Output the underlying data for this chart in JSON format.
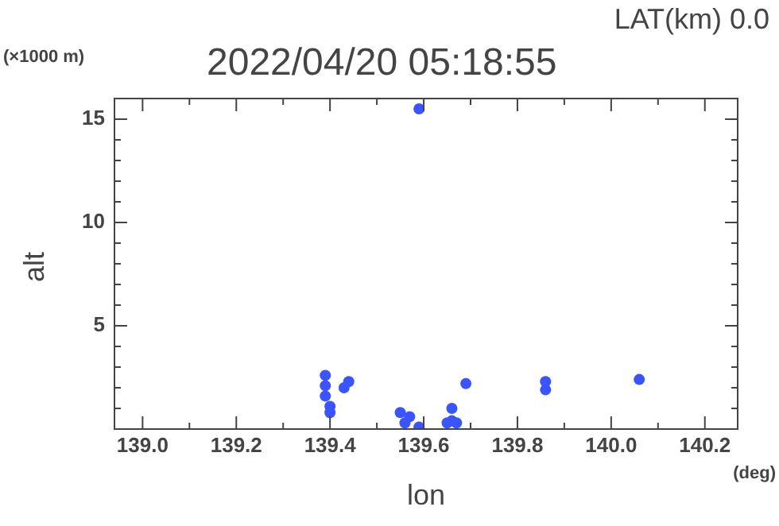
{
  "chart_data": {
    "type": "scatter",
    "title": "2022/04/20 05:18:55",
    "xlabel": "lon",
    "ylabel": "alt",
    "annotations": [
      "LAT(km) 0.0",
      "(×1000 m)",
      "(deg)"
    ],
    "marker": "circle",
    "series": [
      {
        "color": "#3a55ff",
        "x": [
          139.39,
          139.39,
          139.39,
          139.4,
          139.4,
          139.43,
          139.44,
          139.56,
          139.55,
          139.57,
          139.59,
          139.65,
          139.66,
          139.67,
          139.66,
          139.69,
          139.86,
          139.86,
          140.06,
          139.59
        ],
        "values": [
          2.6,
          2.1,
          1.6,
          1.1,
          0.8,
          2.0,
          2.3,
          0.3,
          0.8,
          0.6,
          0.1,
          0.3,
          0.4,
          0.3,
          1.0,
          2.2,
          1.9,
          2.3,
          2.4,
          15.5
        ]
      }
    ],
    "xlim": [
      138.94,
      140.27
    ],
    "xticks": [
      {
        "value": 139,
        "label": "139.0"
      },
      {
        "value": 139.1,
        "label": null
      },
      {
        "value": 139.2,
        "label": "139.2"
      },
      {
        "value": 139.3,
        "label": null
      },
      {
        "value": 139.4,
        "label": "139.4"
      },
      {
        "value": 139.5,
        "label": null
      },
      {
        "value": 139.6,
        "label": "139.6"
      },
      {
        "value": 139.7,
        "label": null
      },
      {
        "value": 139.8,
        "label": "139.8"
      },
      {
        "value": 139.9,
        "label": null
      },
      {
        "value": 140,
        "label": "140.0"
      },
      {
        "value": 140.1,
        "label": null
      },
      {
        "value": 140.2,
        "label": "140.2"
      }
    ],
    "ylim": [
      0,
      16
    ],
    "yticks": [
      {
        "value": 1,
        "label": null
      },
      {
        "value": 2,
        "label": null
      },
      {
        "value": 3,
        "label": null
      },
      {
        "value": 4,
        "label": null
      },
      5,
      {
        "value": 6,
        "label": null
      },
      {
        "value": 7,
        "label": null
      },
      {
        "value": 8,
        "label": null
      },
      {
        "value": 9,
        "label": null
      },
      10,
      {
        "value": 11,
        "label": null
      },
      {
        "value": 12,
        "label": null
      },
      {
        "value": 13,
        "label": null
      },
      {
        "value": 14,
        "label": null
      },
      15
    ]
  }
}
